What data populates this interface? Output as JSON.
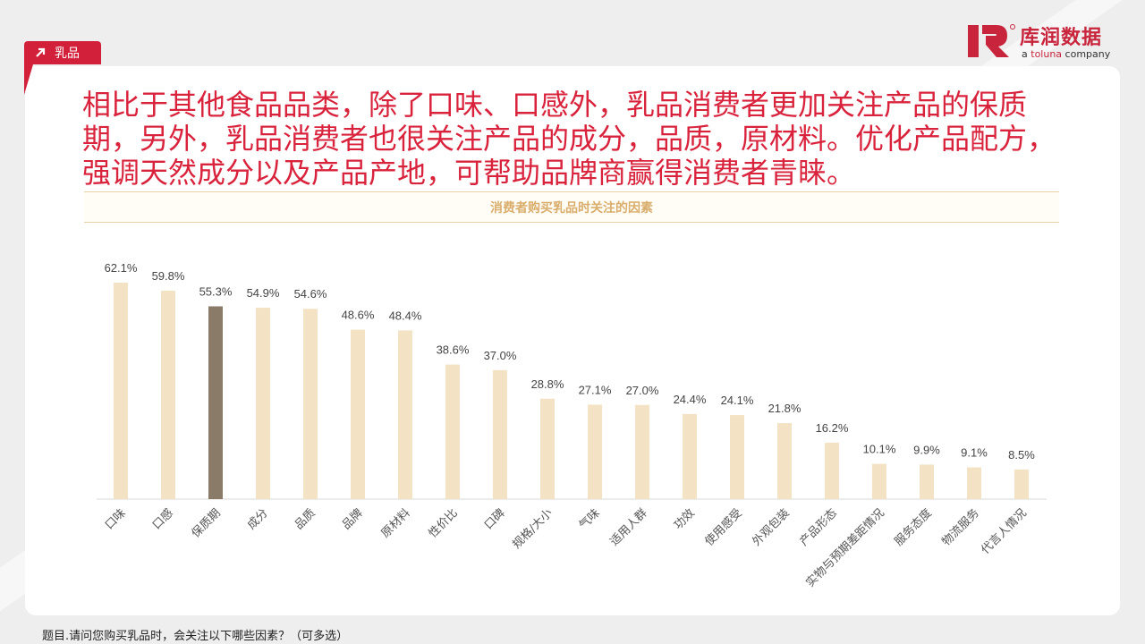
{
  "section_tag": {
    "icon": "arrow-up-right-icon",
    "label": "乳品"
  },
  "logo": {
    "mark": "库润数据",
    "sub_a": "a",
    "sub_brand": "toluna",
    "sub_c": "company"
  },
  "headline": "相比于其他食品品类，除了口味、口感外，乳品消费者更加关注产品的保质期，另外，乳品消费者也很关注产品的成分，品质，原材料。优化产品配方，强调天然成分以及产品产地，可帮助品牌商赢得消费者青睐。",
  "footnote": "题目.请问您购买乳品时，会关注以下哪些因素？（可多选）",
  "colors": {
    "accent": "#d9233d",
    "bar": "#f3e2c4",
    "highlight_bar": "#8a7b69",
    "title_band_text": "#d9ad6c"
  },
  "chart_data": {
    "type": "bar",
    "title": "消费者购买乳品时关注的因素",
    "categories": [
      "口味",
      "口感",
      "保质期",
      "成分",
      "品质",
      "品牌",
      "原材料",
      "性价比",
      "口碑",
      "规格/大小",
      "气味",
      "适用人群",
      "功效",
      "使用感受",
      "外观包装",
      "产品形态",
      "实物与预期差距情况",
      "服务态度",
      "物流服务",
      "代言人情况"
    ],
    "values": [
      62.1,
      59.8,
      55.3,
      54.9,
      54.6,
      48.6,
      48.4,
      38.6,
      37.0,
      28.8,
      27.1,
      27.0,
      24.4,
      24.1,
      21.8,
      16.2,
      10.1,
      9.9,
      9.1,
      8.5
    ],
    "labels": [
      "62.1%",
      "59.8%",
      "55.3%",
      "54.9%",
      "54.6%",
      "48.6%",
      "48.4%",
      "38.6%",
      "37.0%",
      "28.8%",
      "27.1%",
      "27.0%",
      "24.4%",
      "24.1%",
      "21.8%",
      "16.2%",
      "10.1%",
      "9.9%",
      "9.1%",
      "8.5%"
    ],
    "highlight_index": 2,
    "ylim": [
      0,
      62.1
    ],
    "grid": false,
    "legend": "none"
  }
}
